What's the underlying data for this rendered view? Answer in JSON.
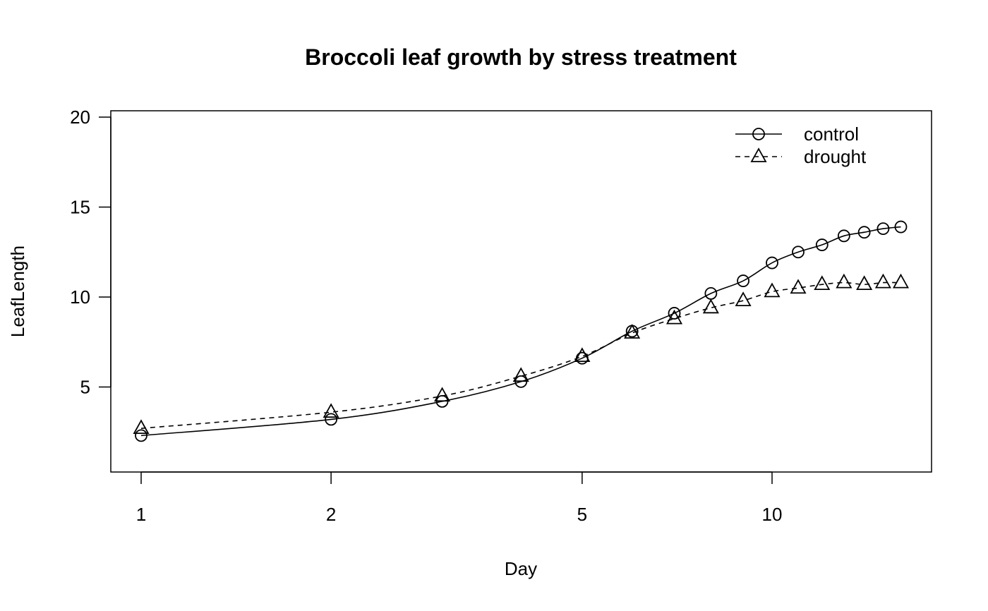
{
  "chart_data": {
    "type": "line",
    "title": "Broccoli leaf growth by stress treatment",
    "xlabel": "Day",
    "ylabel": "LeafLength",
    "xscale": "log",
    "xlim": [
      0.95,
      17
    ],
    "ylim": [
      1.3,
      20.3
    ],
    "xticks": [
      1,
      2,
      5,
      10
    ],
    "xtick_labels": [
      "1",
      "2",
      "5",
      "10"
    ],
    "yticks": [
      5,
      10,
      15,
      20
    ],
    "ytick_labels": [
      "5",
      "10",
      "15",
      "20"
    ],
    "grid": false,
    "legend_position": "top-right",
    "x": [
      1,
      2,
      3,
      4,
      5,
      6,
      7,
      8,
      9,
      10,
      11,
      12,
      13,
      14,
      15,
      16
    ],
    "series": [
      {
        "name": "control",
        "marker": "circle",
        "line": "solid",
        "values": [
          2.3,
          3.2,
          4.2,
          5.3,
          6.6,
          8.1,
          9.1,
          10.2,
          10.9,
          11.9,
          12.5,
          12.9,
          13.4,
          13.6,
          13.8,
          13.9
        ]
      },
      {
        "name": "drought",
        "marker": "triangle",
        "line": "dashed",
        "values": [
          2.7,
          3.6,
          4.5,
          5.6,
          6.7,
          8.0,
          8.8,
          9.4,
          9.8,
          10.3,
          10.5,
          10.7,
          10.8,
          10.7,
          10.8,
          10.8
        ]
      }
    ]
  }
}
